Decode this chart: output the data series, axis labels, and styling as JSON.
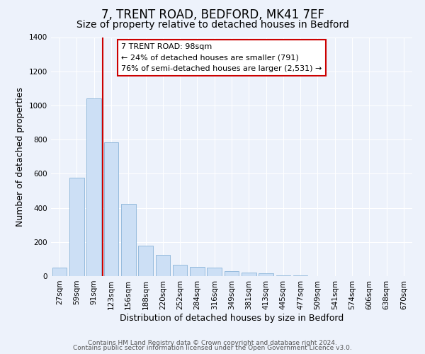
{
  "title": "7, TRENT ROAD, BEDFORD, MK41 7EF",
  "subtitle": "Size of property relative to detached houses in Bedford",
  "xlabel": "Distribution of detached houses by size in Bedford",
  "ylabel": "Number of detached properties",
  "bar_labels": [
    "27sqm",
    "59sqm",
    "91sqm",
    "123sqm",
    "156sqm",
    "188sqm",
    "220sqm",
    "252sqm",
    "284sqm",
    "316sqm",
    "349sqm",
    "381sqm",
    "413sqm",
    "445sqm",
    "477sqm",
    "509sqm",
    "541sqm",
    "574sqm",
    "606sqm",
    "638sqm",
    "670sqm"
  ],
  "bar_values": [
    50,
    575,
    1040,
    785,
    425,
    180,
    125,
    65,
    55,
    50,
    27,
    22,
    15,
    5,
    3,
    0,
    0,
    0,
    0,
    0,
    0
  ],
  "bar_color": "#ccdff5",
  "bar_edge_color": "#8ab4d8",
  "vline_x_index": 2,
  "vline_color": "#cc0000",
  "ylim": [
    0,
    1400
  ],
  "yticks": [
    0,
    200,
    400,
    600,
    800,
    1000,
    1200,
    1400
  ],
  "annotation_title": "7 TRENT ROAD: 98sqm",
  "annotation_line1": "← 24% of detached houses are smaller (791)",
  "annotation_line2": "76% of semi-detached houses are larger (2,531) →",
  "annotation_box_facecolor": "#ffffff",
  "annotation_box_edgecolor": "#cc0000",
  "footer_line1": "Contains HM Land Registry data © Crown copyright and database right 2024.",
  "footer_line2": "Contains public sector information licensed under the Open Government Licence v3.0.",
  "background_color": "#edf2fb",
  "grid_color": "#ffffff",
  "title_fontsize": 12,
  "subtitle_fontsize": 10,
  "axis_label_fontsize": 9,
  "tick_fontsize": 7.5,
  "annotation_fontsize": 8,
  "footer_fontsize": 6.5
}
